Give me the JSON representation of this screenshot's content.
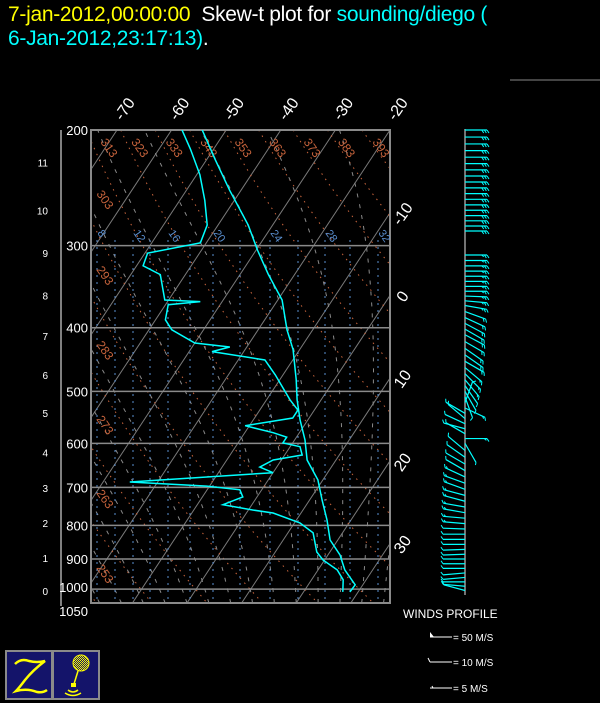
{
  "title": {
    "datetime": "7-jan-2012,00:00:00",
    "text": "Skew-t plot for",
    "station": "sounding/diego (",
    "obs_time": "6-Jan-2012,23:17:13)",
    "end": "."
  },
  "colors": {
    "background": "#000000",
    "temperature_trace": "#00ffff",
    "dewpoint_trace": "#00ffff",
    "isotherm": "#7a7a7a",
    "dry_adiabat": "#c8643c",
    "mixing_ratio": "#5a8fd0",
    "moist_adiabat": "#8a8a8a",
    "isobar": "#8a8a8a",
    "label": "#ffffff"
  },
  "chart_data": {
    "type": "line",
    "subtype": "skew-t log-p",
    "y_axis": {
      "scale": "log",
      "range_hPa": [
        200,
        1050
      ],
      "reversed": true,
      "pressure_labels": [
        "200",
        "300",
        "400",
        "500",
        "600",
        "700",
        "800",
        "900",
        "1000",
        "1050"
      ]
    },
    "height_labels_km": [
      {
        "label": "11",
        "p": 224
      },
      {
        "label": "10",
        "p": 265
      },
      {
        "label": "9",
        "p": 308
      },
      {
        "label": "8",
        "p": 357
      },
      {
        "label": "7",
        "p": 412
      },
      {
        "label": "6",
        "p": 472
      },
      {
        "label": "5",
        "p": 539
      },
      {
        "label": "4",
        "p": 620
      },
      {
        "label": "3",
        "p": 702
      },
      {
        "label": "2",
        "p": 793
      },
      {
        "label": "1",
        "p": 896
      },
      {
        "label": "0",
        "p": 1006
      }
    ],
    "isotherm_labels_top": [
      "-70",
      "-60",
      "-50",
      "-40",
      "-30",
      "-20"
    ],
    "isotherm_labels_right": [
      "-10",
      "0",
      "10",
      "20",
      "30"
    ],
    "dry_adiabat_labels_top": [
      "313",
      "323",
      "333",
      "343",
      "353",
      "363",
      "373",
      "383",
      "393"
    ],
    "dry_adiabat_labels_left": [
      "303",
      "293",
      "283",
      "273",
      "263",
      "253"
    ],
    "mixing_ratio_labels": [
      "8",
      "12",
      "16",
      "20",
      "24",
      "28",
      "32"
    ],
    "grid": true,
    "series": [
      {
        "key": "temperature",
        "unit": "°C",
        "points": [
          [
            200,
            -54.4
          ],
          [
            222,
            -48.4
          ],
          [
            247,
            -42.1
          ],
          [
            279,
            -34.5
          ],
          [
            305,
            -29.7
          ],
          [
            332,
            -24.8
          ],
          [
            363,
            -19.2
          ],
          [
            403,
            -14.7
          ],
          [
            432,
            -11.2
          ],
          [
            480,
            -7.0
          ],
          [
            515,
            -4.4
          ],
          [
            553,
            -1.4
          ],
          [
            593,
            1.9
          ],
          [
            636,
            4.7
          ],
          [
            682,
            9.1
          ],
          [
            732,
            12.3
          ],
          [
            785,
            15.6
          ],
          [
            842,
            18.6
          ],
          [
            887,
            22.2
          ],
          [
            935,
            24.9
          ],
          [
            985,
            28.6
          ],
          [
            1010,
            28.5
          ]
        ]
      },
      {
        "key": "dewpoint",
        "unit": "°C",
        "points": [
          [
            200,
            -58.1
          ],
          [
            214,
            -54.2
          ],
          [
            234,
            -49.4
          ],
          [
            256,
            -45.4
          ],
          [
            279,
            -42.0
          ],
          [
            297,
            -41.1
          ],
          [
            308,
            -49.5
          ],
          [
            322,
            -48.8
          ],
          [
            332,
            -44.6
          ],
          [
            363,
            -40.7
          ],
          [
            365,
            -34.0
          ],
          [
            369,
            -39.5
          ],
          [
            389,
            -38.2
          ],
          [
            403,
            -35.8
          ],
          [
            422,
            -30.0
          ],
          [
            428,
            -23.1
          ],
          [
            435,
            -25.8
          ],
          [
            448,
            -15.1
          ],
          [
            472,
            -11.4
          ],
          [
            515,
            -5.7
          ],
          [
            534,
            -3.0
          ],
          [
            549,
            -3.0
          ],
          [
            564,
            -10.8
          ],
          [
            578,
            -4.8
          ],
          [
            587,
            -1.8
          ],
          [
            599,
            -1.8
          ],
          [
            607,
            1.8
          ],
          [
            625,
            3.2
          ],
          [
            636,
            -1.5
          ],
          [
            652,
            -3.1
          ],
          [
            665,
            0.0
          ],
          [
            687,
            -25.1
          ],
          [
            697,
            -10.5
          ],
          [
            706,
            -4.0
          ],
          [
            724,
            -2.6
          ],
          [
            744,
            -5.3
          ],
          [
            758,
            0.8
          ],
          [
            766,
            4.9
          ],
          [
            793,
            11.0
          ],
          [
            821,
            14.6
          ],
          [
            878,
            17.6
          ],
          [
            903,
            19.7
          ],
          [
            935,
            23.5
          ],
          [
            968,
            25.8
          ],
          [
            1010,
            27.2
          ]
        ]
      }
    ]
  },
  "winds": {
    "title": "WINDS PROFILE",
    "legend": [
      {
        "label": "= 50 M/S",
        "speed": 50
      },
      {
        "label": "= 10 M/S",
        "speed": 10
      },
      {
        "label": "= 5 M/S",
        "speed": 5
      }
    ],
    "profile": [
      [
        200,
        90,
        30
      ],
      [
        205,
        90,
        30
      ],
      [
        210,
        90,
        30
      ],
      [
        215,
        90,
        30
      ],
      [
        220,
        90,
        30
      ],
      [
        225,
        90,
        30
      ],
      [
        230,
        90,
        30
      ],
      [
        235,
        90,
        30
      ],
      [
        240,
        90,
        30
      ],
      [
        245,
        90,
        30
      ],
      [
        250,
        90,
        30
      ],
      [
        255,
        90,
        30
      ],
      [
        260,
        90,
        30
      ],
      [
        265,
        90,
        30
      ],
      [
        270,
        90,
        30
      ],
      [
        275,
        90,
        30
      ],
      [
        280,
        90,
        30
      ],
      [
        285,
        90,
        30
      ],
      [
        310,
        90,
        28
      ],
      [
        316,
        90,
        28
      ],
      [
        322,
        90,
        28
      ],
      [
        328,
        90,
        28
      ],
      [
        334,
        90,
        28
      ],
      [
        340,
        90,
        28
      ],
      [
        346,
        90,
        28
      ],
      [
        352,
        90,
        28
      ],
      [
        358,
        92,
        28
      ],
      [
        364,
        95,
        25
      ],
      [
        370,
        100,
        25
      ],
      [
        378,
        110,
        22
      ],
      [
        386,
        115,
        22
      ],
      [
        394,
        118,
        22
      ],
      [
        402,
        120,
        22
      ],
      [
        410,
        118,
        22
      ],
      [
        420,
        120,
        20
      ],
      [
        430,
        125,
        20
      ],
      [
        440,
        125,
        20
      ],
      [
        450,
        120,
        20
      ],
      [
        460,
        130,
        18
      ],
      [
        470,
        135,
        15
      ],
      [
        480,
        140,
        15
      ],
      [
        490,
        145,
        12
      ],
      [
        500,
        150,
        12
      ],
      [
        510,
        160,
        10
      ],
      [
        520,
        20,
        10
      ],
      [
        530,
        115,
        15
      ],
      [
        540,
        300,
        12
      ],
      [
        550,
        310,
        12
      ],
      [
        560,
        295,
        14
      ],
      [
        570,
        285,
        14
      ],
      [
        580,
        300,
        14
      ],
      [
        590,
        90,
        15
      ],
      [
        600,
        150,
        8
      ],
      [
        615,
        310,
        10
      ],
      [
        630,
        305,
        12
      ],
      [
        645,
        300,
        14
      ],
      [
        660,
        300,
        14
      ],
      [
        675,
        295,
        15
      ],
      [
        690,
        290,
        15
      ],
      [
        705,
        290,
        15
      ],
      [
        720,
        285,
        15
      ],
      [
        735,
        285,
        15
      ],
      [
        750,
        280,
        15
      ],
      [
        765,
        280,
        15
      ],
      [
        780,
        275,
        15
      ],
      [
        795,
        275,
        15
      ],
      [
        810,
        272,
        14
      ],
      [
        825,
        270,
        14
      ],
      [
        840,
        270,
        14
      ],
      [
        855,
        270,
        14
      ],
      [
        870,
        268,
        14
      ],
      [
        885,
        268,
        14
      ],
      [
        900,
        270,
        12
      ],
      [
        915,
        270,
        12
      ],
      [
        930,
        270,
        12
      ],
      [
        945,
        265,
        12
      ],
      [
        960,
        265,
        12
      ],
      [
        975,
        270,
        12
      ],
      [
        990,
        275,
        12
      ],
      [
        1005,
        285,
        10
      ]
    ]
  }
}
